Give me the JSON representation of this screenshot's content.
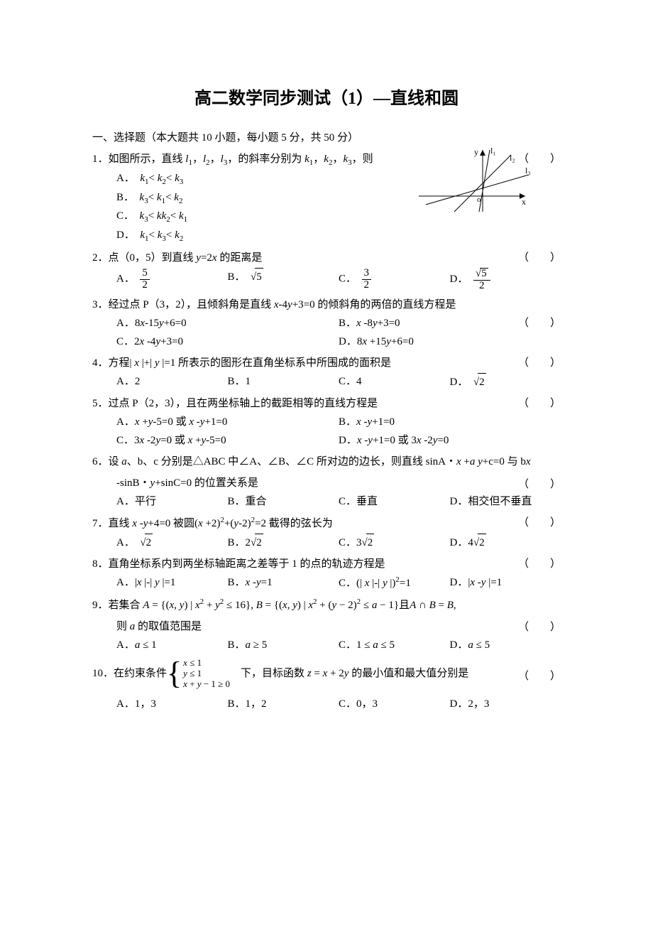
{
  "title": "高二数学同步测试（1）—直线和圆",
  "section1": "一、选择题（本大题共 10 小题，每小题 5 分，共 50 分）",
  "paren": "（　　）",
  "figure1": {
    "axes_color": "#000000",
    "line_color": "#000000",
    "labels": {
      "y": "y",
      "x": "x",
      "o": "o",
      "l1": "l₁",
      "l2": "l₂",
      "l3": "l₃"
    }
  },
  "p1": {
    "num": "1．",
    "stem": "如图所示，直线 <span class='it'>l</span><sub>1</sub>，<span class='it'>l</span><sub>2</sub>，<span class='it'>l</span><sub>3</sub>，的斜率分别为 <span class='it'>k</span><sub>1</sub>，<span class='it'>k</span><sub>2</sub>，<span class='it'>k</span><sub>3</sub>，则",
    "opts": {
      "A": "A．　<span class='it'>k</span><sub>1</sub>&lt; <span class='it'>k</span><sub>2</sub>&lt; <span class='it'>k</span><sub>3</sub>",
      "B": "B．　<span class='it'>k</span><sub>3</sub>&lt; <span class='it'>k</span><sub>1</sub>&lt; <span class='it'>k</span><sub>2</sub>",
      "C": "C．　<span class='it'>k</span><sub>3</sub>&lt; <span class='it'>kk</span><sub>2</sub>&lt; <span class='it'>k</span><sub>1</sub>",
      "D": "D．　<span class='it'>k</span><sub>1</sub>&lt; <span class='it'>k</span><sub>3</sub>&lt; <span class='it'>k</span><sub>2</sub>"
    }
  },
  "p2": {
    "num": "2．",
    "stem": "点（0，5）到直线 <span class='it'>y</span>=2<span class='it'>x</span> 的距离是",
    "opts": {
      "A": "A．",
      "B": "B．",
      "C": "C．",
      "D": "D．"
    },
    "fracs": {
      "A": {
        "num": "5",
        "den": "2"
      },
      "B": {
        "rad": "5"
      },
      "C": {
        "num": "3",
        "den": "2"
      },
      "D": {
        "num_rad": "5",
        "den": "2"
      }
    }
  },
  "p3": {
    "num": "3．",
    "stem": "经过点 P（3，2），且倾斜角是直线 <span class='it'>x</span>-4<span class='it'>y</span>+3=0 的倾斜角的两倍的直线方程是",
    "opts": {
      "A": "A．8<span class='it'>x</span>-15<span class='it'>y</span>+6=0",
      "B": "B．<span class='it'>x</span> -8<span class='it'>y</span>+3=0",
      "C": "C．2<span class='it'>x</span> -4<span class='it'>y</span>+3=0",
      "D": "D．8<span class='it'>x</span> +15<span class='it'>y</span>+6=0"
    }
  },
  "p4": {
    "num": "4．",
    "stem": "方程| <span class='it'>x</span> |+| <span class='it'>y</span> |=1 所表示的图形在直角坐标系中所围成的面积是",
    "opts": {
      "A": "A．2",
      "B": "B．1",
      "C": "C．4",
      "D": "D．",
      "D_rad": "2"
    }
  },
  "p5": {
    "num": "5．",
    "stem": "过点 P（2，3），且在两坐标轴上的截距相等的直线方程是",
    "opts": {
      "A": "A．<span class='it'>x</span> +<span class='it'>y</span>-5=0 或 <span class='it'>x</span> -<span class='it'>y</span>+1=0",
      "B": "B．<span class='it'>x</span> -<span class='it'>y</span>+1=0",
      "C": "C．3<span class='it'>x</span> -2<span class='it'>y</span>=0 或 <span class='it'>x</span> +<span class='it'>y</span>-5=0",
      "D": "D．<span class='it'>x</span> -<span class='it'>y</span>+1=0 或 3<span class='it'>x</span> -2<span class='it'>y</span>=0"
    }
  },
  "p6": {
    "num": "6．",
    "stem1": "设 <span class='it'>a</span>、b、c 分别是△ABC 中∠A、∠B、∠C 所对边的边长，则直线 sinA・<span class='it'>x</span> +<span class='it'>a y</span>+c=0 与 b<span class='it'>x</span>",
    "stem2": "-sinB・<span class='it'>y</span>+sinC=0 的位置关系是",
    "opts": {
      "A": "A．平行",
      "B": "B．重合",
      "C": "C．垂直",
      "D": "D．相交但不垂直"
    }
  },
  "p7": {
    "num": "7．",
    "stem": "直线 <span class='it'>x</span> -<span class='it'>y</span>+4=0 被圆(<span class='it'>x</span> +2)<sup>2</sup>+(<span class='it'>y</span>-2)<sup>2</sup>=2 截得的弦长为",
    "opts": {
      "A": "A．",
      "B": "B．2",
      "C": "C．3",
      "D": "D．4"
    },
    "rad": "2"
  },
  "p8": {
    "num": "8．",
    "stem": "直角坐标系内到两坐标轴距离之差等于 1 的点的轨迹方程是",
    "opts": {
      "A": "A．|<span class='it'>x</span> |-| <span class='it'>y</span> |=1",
      "B": "B．<span class='it'>x</span> -<span class='it'>y</span>=1",
      "C": "C．(| <span class='it'>x</span> |-| <span class='it'>y</span> |)<sup>2</sup>=1",
      "D": "D．|<span class='it'>x</span> -<span class='it'>y</span> |=1"
    }
  },
  "p9": {
    "num": "9．",
    "stem1": "若集合 <span class='it'>A</span> = {(<span class='it'>x</span>, <span class='it'>y</span>) | <span class='it'>x</span><sup>2</sup> + <span class='it'>y</span><sup>2</sup> ≤ 16}, <span class='it'>B</span> = {(<span class='it'>x</span>, <span class='it'>y</span>) | <span class='it'>x</span><sup>2</sup> + (<span class='it'>y</span> − 2)<sup>2</sup> ≤ <span class='it'>a</span> − 1}且<span class='it'>A</span> ∩ <span class='it'>B</span> = <span class='it'>B</span>,",
    "stem2": "则 <span class='it'>a</span> 的取值范围是",
    "opts": {
      "A": "A．<span class='it'>a</span> ≤ 1",
      "B": "B．<span class='it'>a</span> ≥ 5",
      "C": "C．1 ≤ <span class='it'>a</span> ≤ 5",
      "D": "D．<span class='it'>a</span> ≤ 5"
    }
  },
  "p10": {
    "num": "10．",
    "pre": "在约束条件",
    "sys": {
      "l1": "<span class='it'>x</span> ≤ 1",
      "l2": "<span class='it'>y</span> ≤ 1",
      "l3": "<span class='it'>x</span> + <span class='it'>y</span> − 1 ≥ 0"
    },
    "post": "下，目标函数 <span class='it'>z</span> = <span class='it'>x</span> + 2<span class='it'>y</span> 的最小值和最大值分别是",
    "opts": {
      "A": "A．1，3",
      "B": "B．1，2",
      "C": "C．0，3",
      "D": "D．2，3"
    }
  }
}
